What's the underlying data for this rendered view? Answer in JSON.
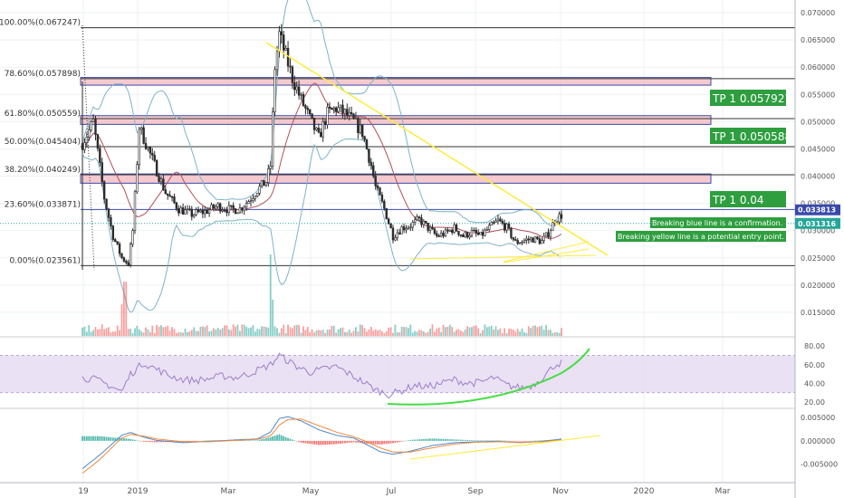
{
  "theme": {
    "background": "#ffffff",
    "grid": "#eef0f3",
    "candle_up": "#2b2b2b",
    "candle_down": "#2b2b2b",
    "fib_line": "#333333",
    "fib_zone_fill": "#f2b8bd",
    "fib_zone_border": "#3949ab",
    "blue_line": "#3949ab",
    "trend_line": "#ffeb3b",
    "bollinger": "#7fb3c8",
    "ma": "#b0505a",
    "tp_bg": "#2e9e3f",
    "tp_text": "#ffffff",
    "note_bg": "#2e9e3f",
    "rsi_line": "#9c7fc9",
    "rsi_band": "#e6dcf2",
    "rsi_curve": "#44dd44",
    "macd_line": "#4f89c9",
    "signal_line": "#f08a3c",
    "hist_up": "#26a69a",
    "hist_down": "#ef5350",
    "label_blue_bg": "#3949ab",
    "label_green_bg": "#26a69a"
  },
  "chart_data": {
    "type": "candlestick",
    "price_axis": {
      "ylim": [
        0.0105,
        0.0715
      ],
      "ticks": [
        "0.070000",
        "0.065000",
        "0.060000",
        "0.055000",
        "0.050000",
        "0.045000",
        "0.040000",
        "0.035000",
        "0.030000",
        "0.025000",
        "0.020000",
        "0.015000"
      ],
      "tick_values": [
        0.07,
        0.065,
        0.06,
        0.055,
        0.05,
        0.045,
        0.04,
        0.035,
        0.03,
        0.025,
        0.02,
        0.015
      ]
    },
    "time_axis": {
      "labels": [
        "19",
        "2019",
        "Mar",
        "May",
        "Jul",
        "Sep",
        "Nov",
        "2020",
        "Mar"
      ],
      "index_range": [
        0,
        262
      ]
    },
    "fib_levels": [
      {
        "label": "100.00%(0.067247)",
        "value": 0.067247
      },
      {
        "label": "78.60%(0.057898)",
        "value": 0.057898
      },
      {
        "label": "61.80%(0.050559)",
        "value": 0.050559
      },
      {
        "label": "50.00%(0.045404)",
        "value": 0.045404
      },
      {
        "label": "38.20%(0.040249)",
        "value": 0.040249
      },
      {
        "label": "23.60%(0.033871)",
        "value": 0.033871
      },
      {
        "label": "0.00%(0.023561)",
        "value": 0.023561
      }
    ],
    "fib_zones": [
      {
        "low": 0.0567,
        "high": 0.0581
      },
      {
        "low": 0.0495,
        "high": 0.0511
      },
      {
        "low": 0.0387,
        "high": 0.0404
      }
    ],
    "take_profits": [
      {
        "label": "TP 1 0.057927",
        "value": 0.057927
      },
      {
        "label": "TP 1 0.050588",
        "value": 0.050588
      },
      {
        "label": "TP 1 0.04",
        "value": 0.04
      }
    ],
    "price_labels": [
      {
        "text": "0.033813",
        "value": 0.033813,
        "style": "blue"
      },
      {
        "text": "0.031316",
        "value": 0.031316,
        "style": "green"
      }
    ],
    "notes": [
      "Breaking blue line is a confirmation.",
      "Breaking yellow line is a potential entry point."
    ],
    "key_prices": [
      [
        0,
        0.046
      ],
      [
        5,
        0.05
      ],
      [
        10,
        0.036
      ],
      [
        14,
        0.029
      ],
      [
        18,
        0.025
      ],
      [
        21,
        0.024
      ],
      [
        23,
        0.03
      ],
      [
        26,
        0.049
      ],
      [
        28,
        0.047
      ],
      [
        32,
        0.043
      ],
      [
        38,
        0.037
      ],
      [
        44,
        0.034
      ],
      [
        50,
        0.033
      ],
      [
        56,
        0.0335
      ],
      [
        62,
        0.0345
      ],
      [
        68,
        0.0338
      ],
      [
        72,
        0.034
      ],
      [
        76,
        0.0355
      ],
      [
        80,
        0.0375
      ],
      [
        84,
        0.039
      ],
      [
        86,
        0.042
      ],
      [
        88,
        0.06
      ],
      [
        90,
        0.066
      ],
      [
        93,
        0.062
      ],
      [
        96,
        0.058
      ],
      [
        100,
        0.054
      ],
      [
        104,
        0.0505
      ],
      [
        108,
        0.047
      ],
      [
        112,
        0.0515
      ],
      [
        116,
        0.0525
      ],
      [
        120,
        0.0515
      ],
      [
        124,
        0.05
      ],
      [
        128,
        0.048
      ],
      [
        132,
        0.042
      ],
      [
        134,
        0.038
      ],
      [
        138,
        0.034
      ],
      [
        142,
        0.029
      ],
      [
        146,
        0.0305
      ],
      [
        150,
        0.031
      ],
      [
        154,
        0.032
      ],
      [
        158,
        0.0305
      ],
      [
        162,
        0.029
      ],
      [
        166,
        0.0295
      ],
      [
        170,
        0.0305
      ],
      [
        174,
        0.029
      ],
      [
        178,
        0.0297
      ],
      [
        182,
        0.029
      ],
      [
        186,
        0.0305
      ],
      [
        190,
        0.0318
      ],
      [
        194,
        0.0305
      ],
      [
        198,
        0.0278
      ],
      [
        202,
        0.0282
      ],
      [
        206,
        0.0285
      ],
      [
        210,
        0.028
      ],
      [
        213,
        0.0295
      ],
      [
        216,
        0.032
      ],
      [
        219,
        0.0328
      ]
    ],
    "rsi": {
      "ylim": [
        14,
        88
      ],
      "ticks": [
        "80.00",
        "60.00",
        "40.00",
        "20.00"
      ],
      "tick_values": [
        80,
        60,
        40,
        20
      ],
      "band": [
        30,
        70
      ],
      "key_values": [
        [
          0,
          46
        ],
        [
          6,
          44
        ],
        [
          12,
          38
        ],
        [
          18,
          31
        ],
        [
          22,
          50
        ],
        [
          28,
          62
        ],
        [
          34,
          55
        ],
        [
          40,
          48
        ],
        [
          46,
          44
        ],
        [
          52,
          43
        ],
        [
          58,
          45
        ],
        [
          64,
          48
        ],
        [
          70,
          46
        ],
        [
          76,
          50
        ],
        [
          82,
          56
        ],
        [
          86,
          60
        ],
        [
          90,
          70
        ],
        [
          94,
          64
        ],
        [
          98,
          58
        ],
        [
          104,
          52
        ],
        [
          110,
          55
        ],
        [
          116,
          58
        ],
        [
          122,
          50
        ],
        [
          128,
          42
        ],
        [
          134,
          33
        ],
        [
          140,
          28
        ],
        [
          146,
          32
        ],
        [
          152,
          38
        ],
        [
          158,
          36
        ],
        [
          164,
          40
        ],
        [
          170,
          44
        ],
        [
          176,
          40
        ],
        [
          182,
          41
        ],
        [
          188,
          46
        ],
        [
          194,
          38
        ],
        [
          200,
          35
        ],
        [
          206,
          38
        ],
        [
          212,
          50
        ],
        [
          216,
          60
        ],
        [
          219,
          62
        ]
      ]
    },
    "macd": {
      "ylim": [
        -0.0088,
        0.0068
      ],
      "ticks": [
        "0.005000",
        "0.000000",
        "-0.005000"
      ],
      "tick_values": [
        0.005,
        0,
        -0.005
      ],
      "macd_key": [
        [
          0,
          -0.006
        ],
        [
          8,
          -0.003
        ],
        [
          14,
          -0.0005
        ],
        [
          18,
          0.0012
        ],
        [
          22,
          0.0018
        ],
        [
          28,
          0.0008
        ],
        [
          34,
          0.0001
        ],
        [
          46,
          -0.0004
        ],
        [
          58,
          -0.0001
        ],
        [
          70,
          0.0002
        ],
        [
          80,
          0.0004
        ],
        [
          86,
          0.0019
        ],
        [
          90,
          0.0048
        ],
        [
          94,
          0.0052
        ],
        [
          100,
          0.0043
        ],
        [
          108,
          0.0024
        ],
        [
          116,
          0.0012
        ],
        [
          124,
          0.0006
        ],
        [
          130,
          -0.0008
        ],
        [
          136,
          -0.0023
        ],
        [
          142,
          -0.0029
        ],
        [
          150,
          -0.0022
        ],
        [
          160,
          -0.001
        ],
        [
          170,
          -0.0004
        ],
        [
          180,
          -0.0002
        ],
        [
          190,
          -0.0001
        ],
        [
          200,
          -0.0004
        ],
        [
          210,
          -0.0001
        ],
        [
          219,
          0.0004
        ]
      ],
      "signal_key": [
        [
          0,
          -0.007
        ],
        [
          8,
          -0.004
        ],
        [
          14,
          -0.0012
        ],
        [
          18,
          0.0006
        ],
        [
          22,
          0.0014
        ],
        [
          28,
          0.001
        ],
        [
          34,
          0.0004
        ],
        [
          46,
          -0.0002
        ],
        [
          58,
          -0.0002
        ],
        [
          70,
          0.0001
        ],
        [
          80,
          0.0003
        ],
        [
          86,
          0.0011
        ],
        [
          90,
          0.0034
        ],
        [
          94,
          0.0046
        ],
        [
          100,
          0.0047
        ],
        [
          108,
          0.0033
        ],
        [
          116,
          0.0019
        ],
        [
          124,
          0.0009
        ],
        [
          130,
          -0.0002
        ],
        [
          136,
          -0.0015
        ],
        [
          142,
          -0.0024
        ],
        [
          150,
          -0.0024
        ],
        [
          160,
          -0.0015
        ],
        [
          170,
          -0.0007
        ],
        [
          180,
          -0.0003
        ],
        [
          190,
          -0.0002
        ],
        [
          200,
          -0.0003
        ],
        [
          210,
          -0.0002
        ],
        [
          219,
          0.0002
        ]
      ]
    }
  }
}
